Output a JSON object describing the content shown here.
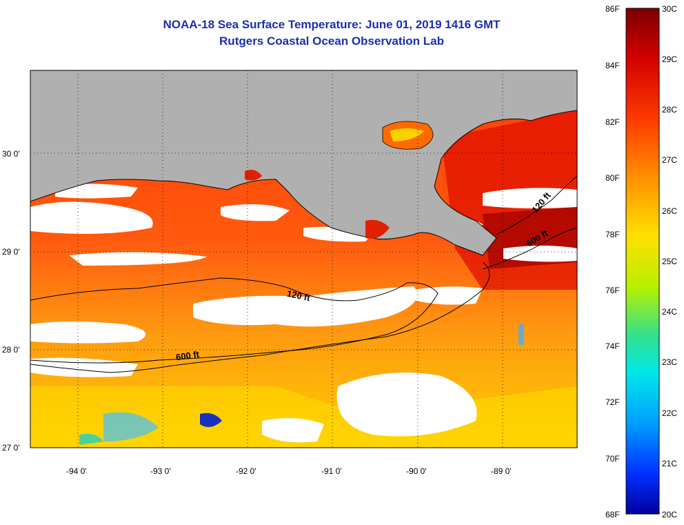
{
  "title": "NOAA-18 Sea Surface Temperature:  June 01, 2019 1416 GMT",
  "subtitle": "Rutgers Coastal Ocean Observation Lab",
  "lat_labels": [
    "30 0'",
    "29 0'",
    "28 0'",
    "27 0'"
  ],
  "lon_labels": [
    "-94 0'",
    "-93 0'",
    "-92 0'",
    "-91 0'",
    "-90 0'",
    "-89 0'"
  ],
  "contours": [
    "120 ft",
    "600 ft",
    "120 ft",
    "600 ft"
  ],
  "colorbar": {
    "fahrenheit": [
      "86F",
      "84F",
      "82F",
      "80F",
      "78F",
      "76F",
      "74F",
      "72F",
      "70F",
      "68F"
    ],
    "celsius": [
      "30C",
      "29C",
      "28C",
      "27C",
      "26C",
      "25C",
      "24C",
      "23C",
      "22C",
      "21C",
      "20C"
    ]
  },
  "colors": {
    "land": "#b0b0b0",
    "cloud": "#ffffff",
    "title": "#1a2fb0"
  }
}
